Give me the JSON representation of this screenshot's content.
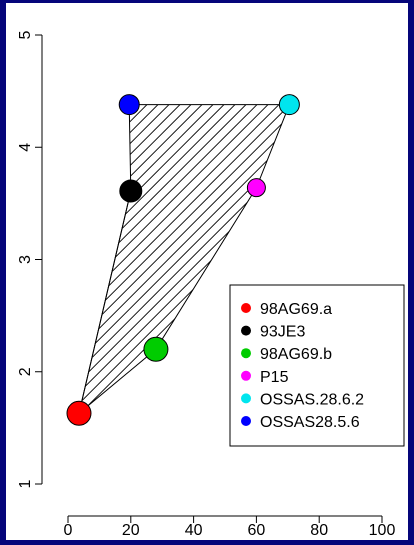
{
  "chart_data": {
    "type": "scatter",
    "title": "",
    "xlabel": "",
    "ylabel": "",
    "xlim": [
      -2,
      100
    ],
    "ylim": [
      0.9,
      5.05
    ],
    "x_ticks": [
      0,
      20,
      40,
      60,
      80,
      100
    ],
    "y_ticks": [
      1,
      2,
      3,
      4,
      5
    ],
    "hull_hatched": true,
    "hull_order": [
      "OSSAS28.5.6",
      "OSSAS.28.6.2",
      "P15",
      "98AG69.b",
      "98AG69.a",
      "93JE3"
    ],
    "legend_position": "bottom-right",
    "series": [
      {
        "name": "98AG69.a",
        "color": "#ff0000",
        "x": 3.5,
        "y": 1.63
      },
      {
        "name": "93JE3",
        "color": "#000000",
        "x": 20,
        "y": 3.61
      },
      {
        "name": "98AG69.b",
        "color": "#00cc00",
        "x": 28,
        "y": 2.2
      },
      {
        "name": "P15",
        "color": "#ff00ff",
        "x": 60,
        "y": 3.64
      },
      {
        "name": "OSSAS.28.6.2",
        "color": "#00e5ee",
        "x": 70.5,
        "y": 4.38
      },
      {
        "name": "OSSAS28.5.6",
        "color": "#0000ff",
        "x": 19.5,
        "y": 4.38
      }
    ]
  }
}
